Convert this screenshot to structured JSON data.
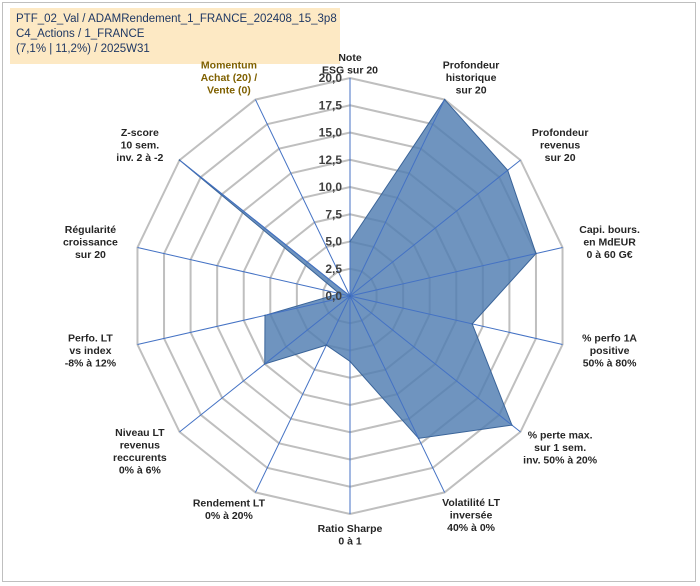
{
  "info": {
    "line1": "PTF_02_Val / ADAMRendement_1_FRANCE_202408_15_3p8",
    "line2": "C4_Actions / 1_FRANCE",
    "line3": "(7,1% | 11,2%) / 2025W31"
  },
  "colors": {
    "area_fill": "#4f7cb1",
    "area_stroke": "#3a6499",
    "grid": "#bfbfbf",
    "spoke": "#4472c4",
    "info_bg": "#fde9c4"
  },
  "chart_data": {
    "type": "radar",
    "title": "",
    "rmin": 0,
    "rmax": 20,
    "ticks": [
      "0,0",
      "2,5",
      "5,0",
      "7,5",
      "10,0",
      "12,5",
      "15,0",
      "17,5",
      "20,0"
    ],
    "tick_values": [
      0,
      2.5,
      5,
      7.5,
      10,
      12.5,
      15,
      17.5,
      20
    ],
    "categories": [
      {
        "lines": [
          "Note",
          "ESG sur 20"
        ]
      },
      {
        "lines": [
          "Profondeur",
          "historique",
          "sur 20"
        ]
      },
      {
        "lines": [
          "Profondeur",
          "revenus",
          "sur 20"
        ]
      },
      {
        "lines": [
          "Capi. bours.",
          "en MdEUR",
          "0 à 60 G€"
        ]
      },
      {
        "lines": [
          "% perfo 1A",
          "positive",
          "50% à 80%"
        ]
      },
      {
        "lines": [
          "% perte max.",
          "sur 1 sem.",
          "inv. 50% à 20%"
        ]
      },
      {
        "lines": [
          "Volatilité LT",
          "inversée",
          "40% à 0%"
        ]
      },
      {
        "lines": [
          "Ratio Sharpe",
          "0 à 1"
        ]
      },
      {
        "lines": [
          "Rendement LT",
          "0% à 20%"
        ]
      },
      {
        "lines": [
          "Niveau LT",
          "revenus",
          "reccurents",
          "0% à 6%"
        ]
      },
      {
        "lines": [
          "Perfo. LT",
          "vs index",
          "-8% à 12%"
        ]
      },
      {
        "lines": [
          "Régularité",
          "croissance",
          "sur 20"
        ]
      },
      {
        "lines": [
          "Z-score",
          "10 sem.",
          "inv. 2 à -2"
        ]
      },
      {
        "lines": [
          "Momentum",
          "Achat (20) /",
          "Vente (0)"
        ]
      }
    ],
    "series": [
      {
        "values": [
          5,
          20,
          18.5,
          17.5,
          11.5,
          19,
          14.5,
          6,
          5,
          10,
          8,
          1,
          20,
          0
        ]
      }
    ]
  }
}
